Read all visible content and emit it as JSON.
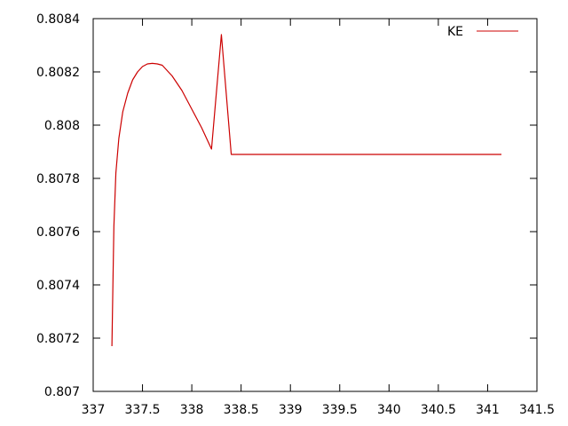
{
  "chart_data": {
    "type": "line",
    "title": "",
    "xlabel": "",
    "ylabel": "",
    "xlim": [
      337,
      341.5
    ],
    "ylim": [
      0.807,
      0.8084
    ],
    "xticks": [
      "337",
      "337.5",
      "338",
      "338.5",
      "339",
      "339.5",
      "340",
      "340.5",
      "341",
      "341.5"
    ],
    "yticks": [
      "0.807",
      "0.8072",
      "0.8074",
      "0.8076",
      "0.8078",
      "0.808",
      "0.8082",
      "0.8084"
    ],
    "grid": false,
    "legend": "top-right",
    "series": [
      {
        "name": "KE",
        "color": "#cc0000",
        "x": [
          337.19,
          337.2,
          337.21,
          337.23,
          337.26,
          337.3,
          337.35,
          337.4,
          337.45,
          337.5,
          337.55,
          337.6,
          337.65,
          337.7,
          337.8,
          337.9,
          338.0,
          338.1,
          338.2,
          338.3,
          338.4,
          338.5,
          338.6,
          338.7,
          338.8,
          338.9,
          339.0,
          339.1,
          339.2,
          339.3,
          339.4,
          339.5,
          339.6,
          339.65,
          339.7,
          339.8,
          339.9,
          340.0,
          340.1,
          340.2,
          340.3,
          340.35,
          340.4,
          340.5,
          340.6,
          340.7,
          340.8,
          340.9,
          341.0,
          341.1,
          341.14
        ],
        "y": [
          0.80717,
          0.8074,
          0.80762,
          0.80782,
          0.80795,
          0.80805,
          0.80812,
          0.80817,
          0.8082,
          0.80822,
          0.80823,
          0.808232,
          0.80823,
          0.808225,
          0.808185,
          0.80813,
          0.80806,
          0.80799,
          0.80791,
          0.80834,
          0.80789,
          0.80789,
          0.80789,
          0.80789,
          0.80789,
          0.80789,
          0.80789,
          0.80789,
          0.80789,
          0.80789,
          0.80789,
          0.80789,
          0.80789,
          0.80789,
          0.80789,
          0.80789,
          0.80789,
          0.80789,
          0.80789,
          0.80789,
          0.80789,
          0.80789,
          0.80789,
          0.80789,
          0.80789,
          0.80789,
          0.80789,
          0.80789,
          0.80789,
          0.80789,
          0.80789
        ]
      }
    ]
  }
}
